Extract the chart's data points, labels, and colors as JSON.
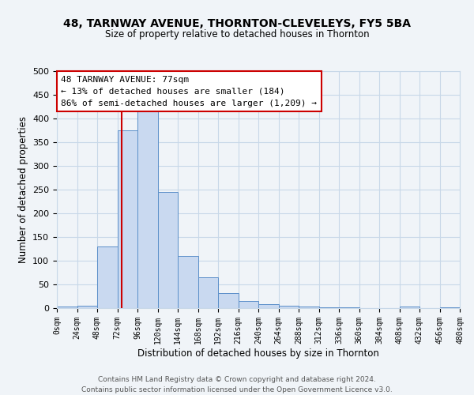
{
  "title": "48, TARNWAY AVENUE, THORNTON-CLEVELEYS, FY5 5BA",
  "subtitle": "Size of property relative to detached houses in Thornton",
  "xlabel": "Distribution of detached houses by size in Thornton",
  "ylabel": "Number of detached properties",
  "bin_edges": [
    0,
    24,
    48,
    72,
    96,
    120,
    144,
    168,
    192,
    216,
    240,
    264,
    288,
    312,
    336,
    360,
    384,
    408,
    432,
    456,
    480
  ],
  "bar_heights": [
    3,
    5,
    130,
    375,
    415,
    245,
    110,
    65,
    32,
    15,
    8,
    5,
    3,
    2,
    1,
    0,
    0,
    3,
    0,
    2
  ],
  "bar_color": "#c9d9f0",
  "bar_edge_color": "#5b8fc9",
  "property_size": 77,
  "vline_color": "#cc0000",
  "ylim": [
    0,
    500
  ],
  "annotation_text": "48 TARNWAY AVENUE: 77sqm\n← 13% of detached houses are smaller (184)\n86% of semi-detached houses are larger (1,209) →",
  "annotation_box_color": "#ffffff",
  "annotation_box_edge_color": "#cc0000",
  "footer_line1": "Contains HM Land Registry data © Crown copyright and database right 2024.",
  "footer_line2": "Contains public sector information licensed under the Open Government Licence v3.0.",
  "tick_labels": [
    "0sqm",
    "24sqm",
    "48sqm",
    "72sqm",
    "96sqm",
    "120sqm",
    "144sqm",
    "168sqm",
    "192sqm",
    "216sqm",
    "240sqm",
    "264sqm",
    "288sqm",
    "312sqm",
    "336sqm",
    "360sqm",
    "384sqm",
    "408sqm",
    "432sqm",
    "456sqm",
    "480sqm"
  ],
  "grid_color": "#c8d8e8",
  "background_color": "#f0f4f8",
  "yticks": [
    0,
    50,
    100,
    150,
    200,
    250,
    300,
    350,
    400,
    450,
    500
  ]
}
